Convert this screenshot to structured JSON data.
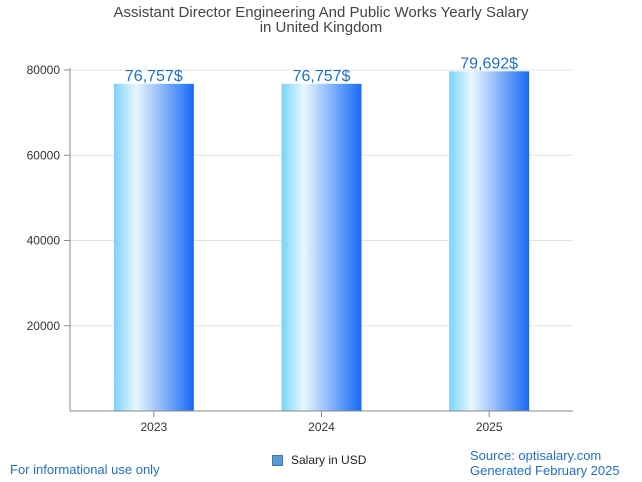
{
  "chart_data": {
    "type": "bar",
    "title_lines": [
      "Assistant Director Engineering And Public Works Yearly Salary",
      "in United Kingdom"
    ],
    "categories": [
      "2023",
      "2024",
      "2025"
    ],
    "series": [
      {
        "name": "Salary in USD",
        "values": [
          76757,
          76757,
          79692
        ]
      }
    ],
    "data_labels": [
      "76,757$",
      "76,757$",
      "79,692$"
    ],
    "ylim": [
      0,
      80000
    ],
    "yticks": [
      20000,
      40000,
      60000,
      80000
    ],
    "ytick_labels": [
      "20000",
      "40000",
      "60000",
      "80000"
    ],
    "grid": true,
    "legend_position": "bottom"
  },
  "footer": {
    "left_text": "For informational use only",
    "source_text": "Source: optisalary.com",
    "generated_text": "Generated February 2025"
  },
  "colors": {
    "bar_light": "#e9f7ff",
    "bar_cyan": "#7ad3fb",
    "bar_blue": "#1769f5",
    "label_blue": "#1f6fd1",
    "grid": "#e3e3e3",
    "axis": "#888888"
  }
}
